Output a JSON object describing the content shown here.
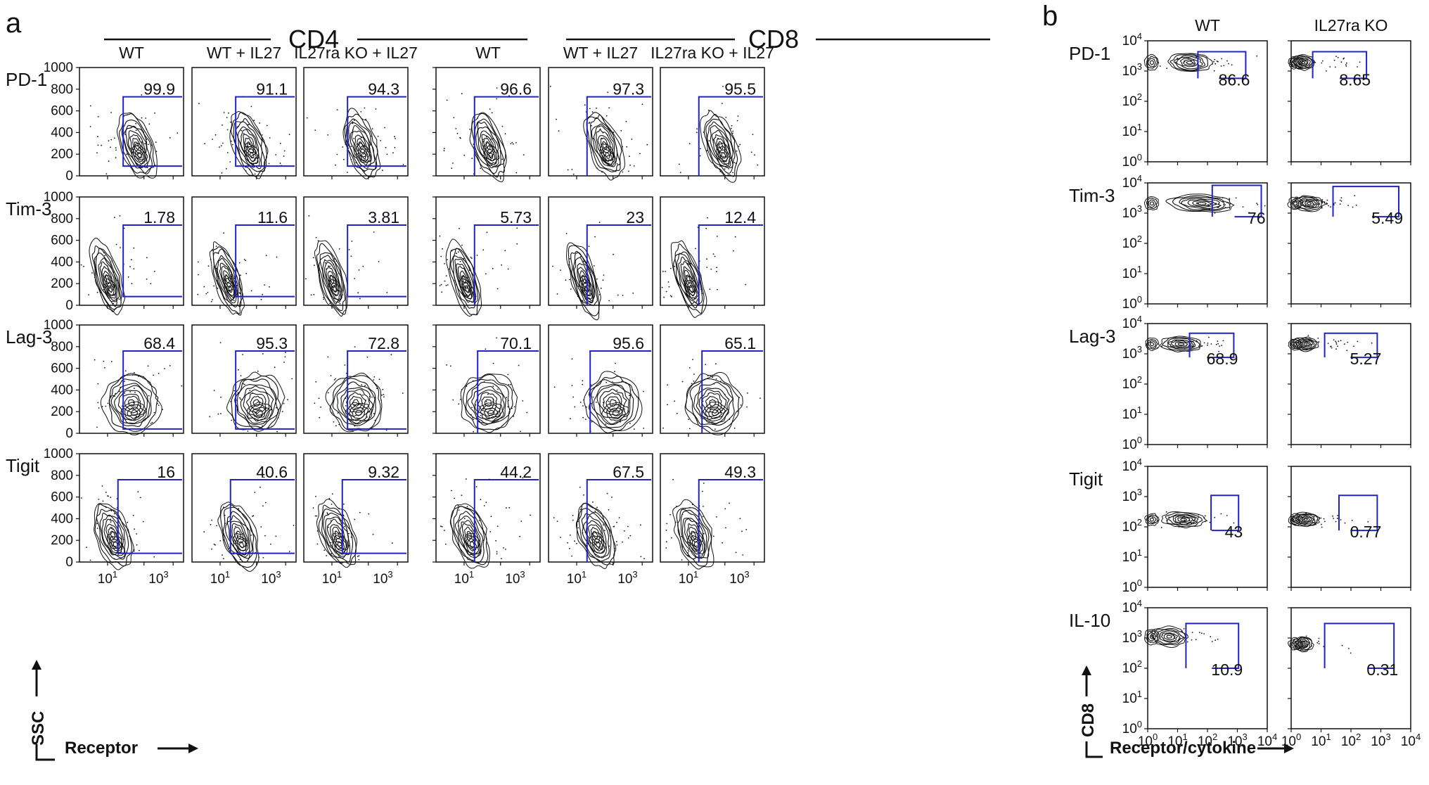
{
  "chart_data": [
    {
      "panel": "a",
      "type": "contour",
      "groups": [
        {
          "name": "CD4",
          "columns": [
            "WT",
            "WT + IL27",
            "IL27ra KO + IL27"
          ]
        },
        {
          "name": "CD8",
          "columns": [
            "WT",
            "WT + IL27",
            "IL27ra KO + IL27"
          ]
        }
      ],
      "rows": [
        "PD-1",
        "Tim-3",
        "Lag-3",
        "Tigit"
      ],
      "y_axis": {
        "label": "SSC",
        "range": [
          0,
          1000
        ],
        "ticks": [
          "0",
          "200",
          "400",
          "600",
          "800",
          "1000"
        ]
      },
      "x_axis": {
        "label": "Receptor",
        "ticks": [
          "10",
          "10",
          "10"
        ],
        "tick_exponents": [
          "1",
          "3"
        ]
      },
      "gate_values": [
        [
          "99.9",
          "91.1",
          "94.3",
          "96.6",
          "97.3",
          "95.5"
        ],
        [
          "1.78",
          "11.6",
          "3.81",
          "5.73",
          "23",
          "12.4"
        ],
        [
          "68.4",
          "95.3",
          "72.8",
          "70.1",
          "95.6",
          "65.1"
        ],
        [
          "16",
          "40.6",
          "9.32",
          "44.2",
          "67.5",
          "49.3"
        ]
      ]
    },
    {
      "panel": "b",
      "type": "contour",
      "columns": [
        "WT",
        "IL27ra KO"
      ],
      "rows": [
        "PD-1",
        "Tim-3",
        "Lag-3",
        "Tigit",
        "IL-10"
      ],
      "y_axis": {
        "label": "CD8",
        "ticks": [
          "10",
          "10",
          "10",
          "10",
          "10"
        ],
        "tick_exponents": [
          "0",
          "1",
          "2",
          "3",
          "4"
        ]
      },
      "x_axis": {
        "label": "Receptor/cytokine",
        "ticks": [
          "10",
          "10",
          "10",
          "10",
          "10"
        ],
        "tick_exponents": [
          "0",
          "1",
          "2",
          "3",
          "4"
        ]
      },
      "gate_values": [
        [
          "86.6",
          "8.65"
        ],
        [
          "76",
          "5.49"
        ],
        [
          "68.9",
          "5.27"
        ],
        [
          "43",
          "0.77"
        ],
        [
          "10.9",
          "0.31"
        ]
      ]
    }
  ],
  "colors": {
    "gate": "#1f23c8",
    "contour": "#111111",
    "axis": "#111111"
  },
  "icons": {
    "arrow_up": "arrow-up-icon",
    "arrow_right": "arrow-right-icon"
  }
}
